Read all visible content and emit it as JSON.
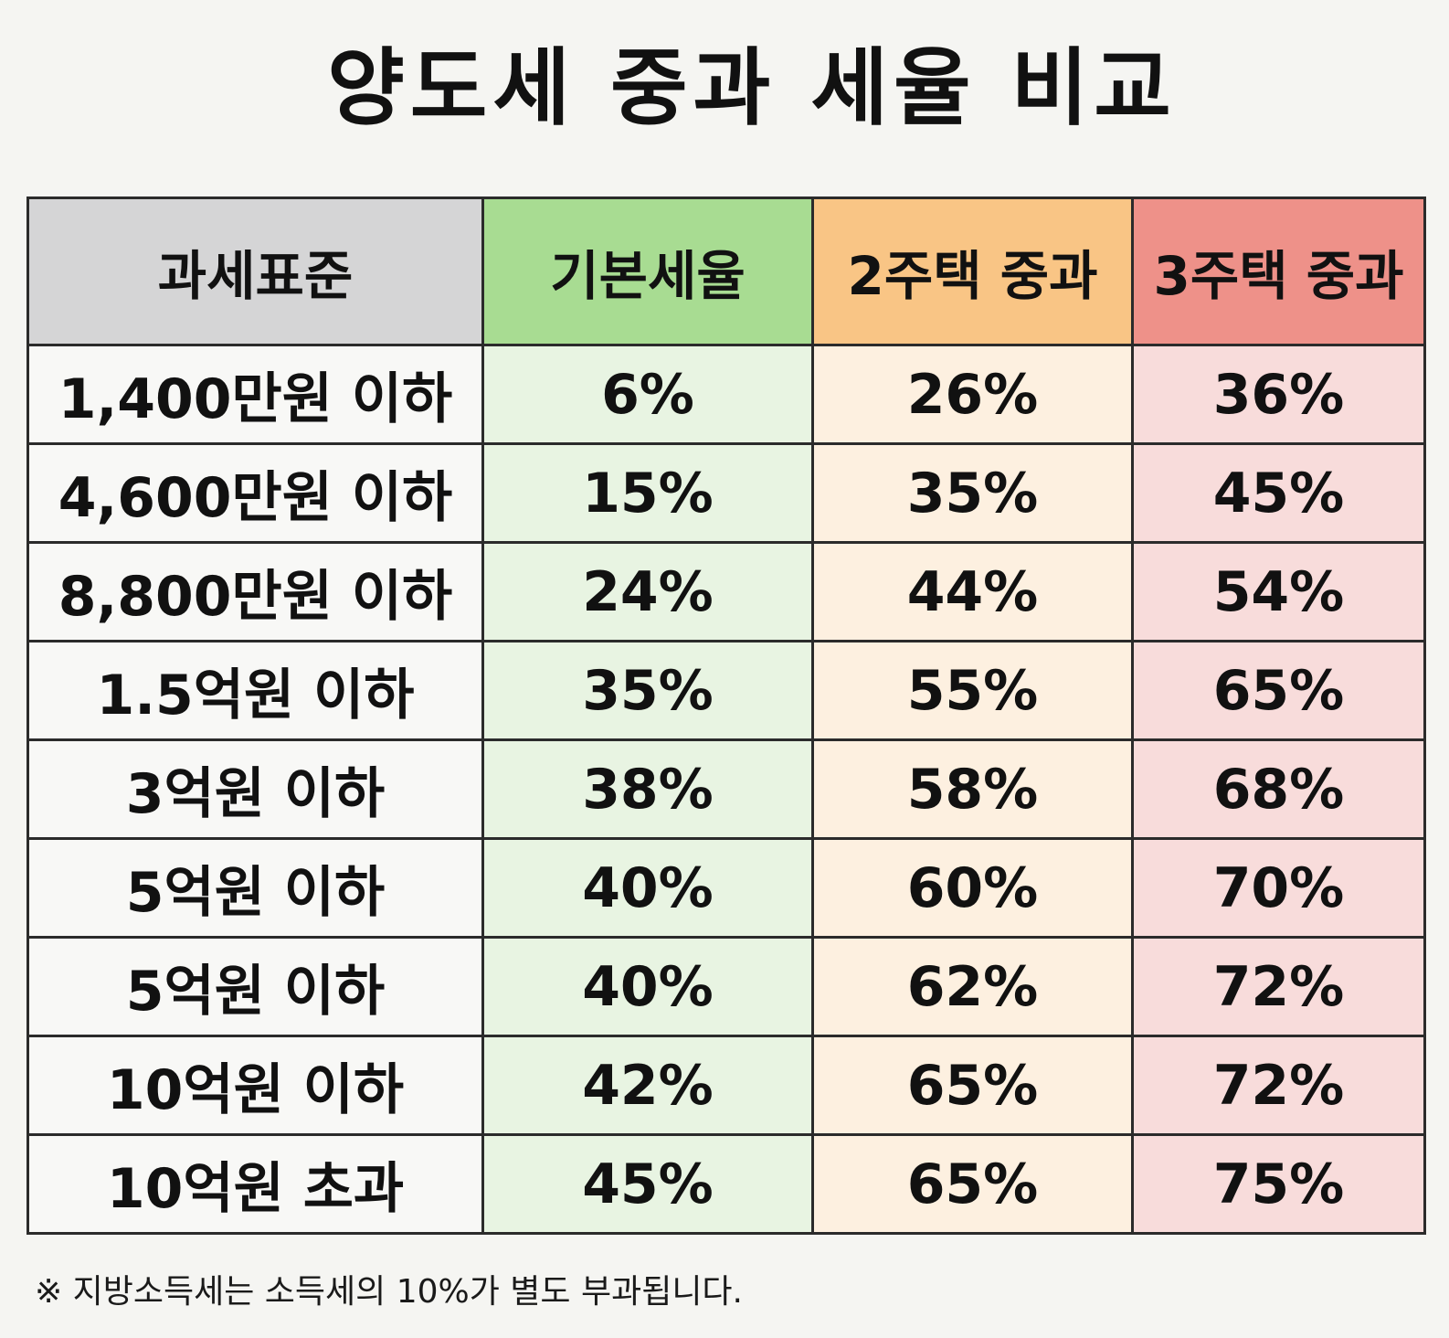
{
  "title": "양도세 중과 세율 비교",
  "colors": {
    "background": "#f5f5f2",
    "header_standard": "#d5d5d6",
    "header_basic": "#a8dc92",
    "header_two_house": "#f9c585",
    "header_three_house": "#ee9189",
    "cell_basic": "#e8f4e2",
    "cell_two_house": "#fdf0e0",
    "cell_three_house": "#f8dcdb"
  },
  "table": {
    "headers": [
      "과세표준",
      "기본세율",
      "2주택 중과",
      "3주택 중과"
    ],
    "rows": [
      [
        "1,400만원 이하",
        "6%",
        "26%",
        "36%"
      ],
      [
        "4,600만원 이하",
        "15%",
        "35%",
        "45%"
      ],
      [
        "8,800만원 이하",
        "24%",
        "44%",
        "54%"
      ],
      [
        "1.5억원 이하",
        "35%",
        "55%",
        "65%"
      ],
      [
        "3억원 이하",
        "38%",
        "58%",
        "68%"
      ],
      [
        "5억원 이하",
        "40%",
        "60%",
        "70%"
      ],
      [
        "5억원 이하",
        "40%",
        "62%",
        "72%"
      ],
      [
        "10억원 이하",
        "42%",
        "65%",
        "72%"
      ],
      [
        "10억원 초과",
        "45%",
        "65%",
        "75%"
      ]
    ]
  },
  "footnote": "※ 지방소득세는 소득세의 10%가 별도 부과됩니다."
}
